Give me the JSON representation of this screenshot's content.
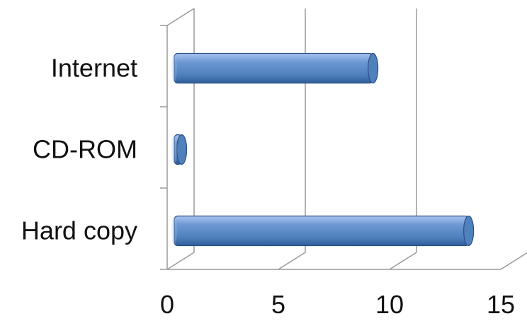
{
  "chart_data": {
    "type": "bar",
    "orientation": "horizontal",
    "categories": [
      "Internet",
      "CD-ROM",
      "Hard copy"
    ],
    "values": [
      9,
      0.4,
      13.3
    ],
    "xlim": [
      0,
      15
    ],
    "xticks": [
      "0",
      "5",
      "10",
      "15"
    ],
    "grid": true,
    "legend": "none",
    "style": "3d-cylinder",
    "colors": {
      "bar_main": "#4f81bd",
      "bar_light": "#a9c4ef",
      "bar_dark": "#2f5d99",
      "bar_edge": "#2c4f85",
      "grid": "#9a9a9a",
      "text": "#111111"
    }
  }
}
